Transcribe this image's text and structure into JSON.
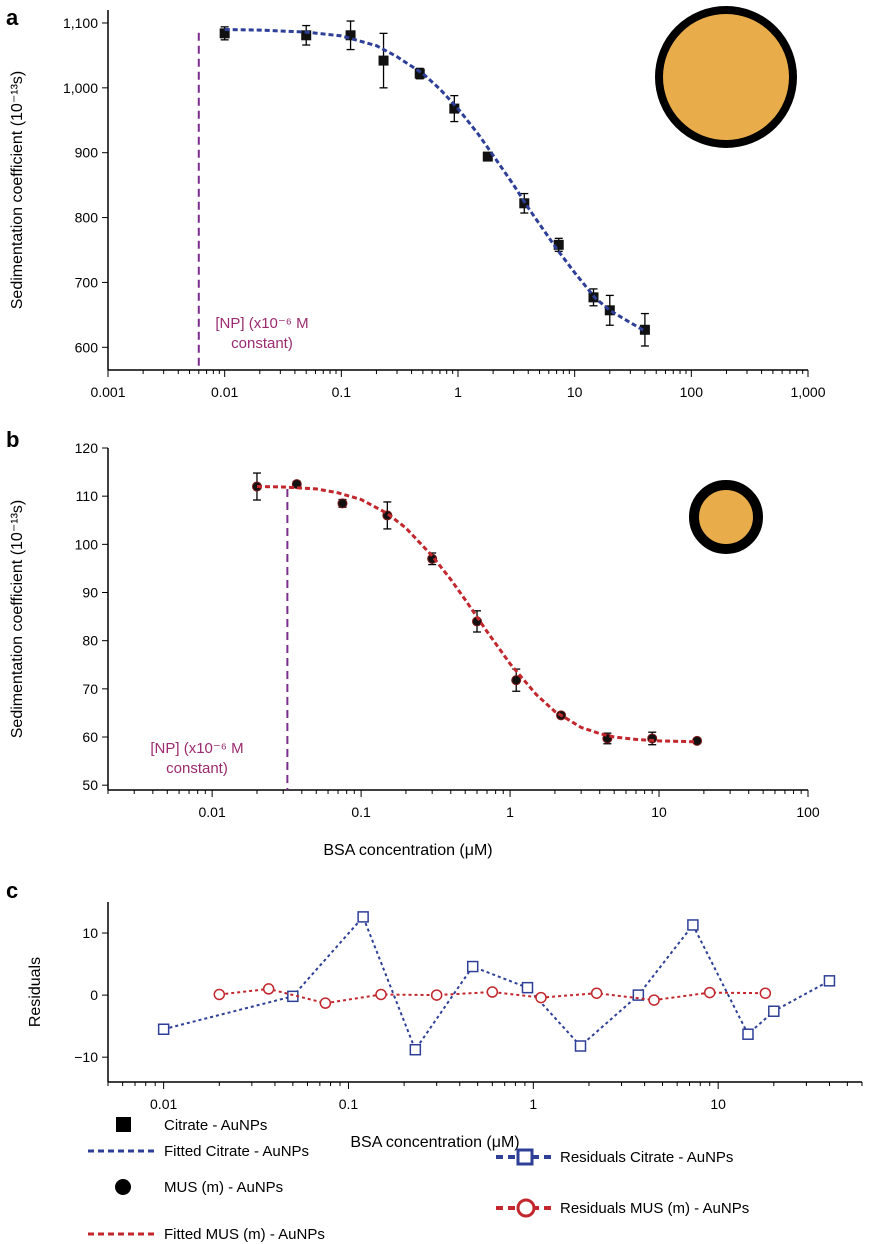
{
  "colors": {
    "citrate": "#2e3f97",
    "mus": "#c1272d",
    "np_line": "#7b2d8e",
    "np_text": "#9b2a6f",
    "particle_fill": "#e8ad4a",
    "particle_ring": "#000000"
  },
  "chart_data": [
    {
      "panel": "a",
      "type": "scatter",
      "xscale": "log",
      "xlim": [
        0.001,
        1000
      ],
      "ylim": [
        565,
        1120
      ],
      "ylabel": "Sedimentation coefficient (10⁻¹³s)",
      "xlabel": "",
      "x_ticks": [
        0.001,
        0.01,
        0.1,
        1,
        10,
        100,
        1000
      ],
      "x_tick_labels": [
        "0.001",
        "0.01",
        "0.1",
        "1",
        "10",
        "100",
        "1,000"
      ],
      "y_ticks": [
        600,
        700,
        800,
        900,
        1000,
        1100
      ],
      "y_tick_labels": [
        "600",
        "700",
        "800",
        "900",
        "1,000",
        "1,100"
      ],
      "np_concentration": 0.006,
      "np_label": [
        "[NP] (x10⁻⁶ M",
        "constant)"
      ],
      "series": [
        {
          "name": "Citrate - AuNPs",
          "marker": "square",
          "x": [
            0.01,
            0.05,
            0.12,
            0.23,
            0.47,
            0.93,
            1.8,
            3.7,
            7.3,
            14.5,
            20,
            40
          ],
          "y": [
            1084,
            1081,
            1081,
            1042,
            1022,
            968,
            894,
            822,
            758,
            677,
            657,
            627
          ],
          "err": [
            10,
            15,
            22,
            42,
            8,
            20,
            6,
            15,
            10,
            13,
            23,
            25
          ]
        },
        {
          "name": "Fitted Citrate - AuNPs",
          "line": "dashed",
          "x": [
            0.01,
            0.02,
            0.05,
            0.1,
            0.2,
            0.3,
            0.5,
            0.7,
            1,
            1.5,
            2,
            3,
            4,
            5,
            7,
            10,
            15,
            20,
            30,
            40
          ],
          "y": [
            1090,
            1089,
            1086,
            1080,
            1065,
            1048,
            1022,
            998,
            968,
            928,
            896,
            850,
            815,
            790,
            752,
            715,
            676,
            657,
            638,
            625
          ]
        }
      ]
    },
    {
      "panel": "b",
      "type": "scatter",
      "xscale": "log",
      "xlim": [
        0.002,
        100
      ],
      "ylim": [
        49,
        120
      ],
      "ylabel": "Sedimentation coefficient (10⁻¹³s)",
      "xlabel": "BSA concentration (μM)",
      "x_ticks": [
        0.01,
        0.1,
        1,
        10,
        100
      ],
      "x_tick_labels": [
        "0.01",
        "0.1",
        "1",
        "10",
        "100"
      ],
      "y_ticks": [
        50,
        60,
        70,
        80,
        90,
        100,
        110,
        120
      ],
      "y_tick_labels": [
        "50",
        "60",
        "70",
        "80",
        "90",
        "100",
        "110",
        "120"
      ],
      "np_concentration": 0.032,
      "np_label": [
        "[NP] (x10⁻⁶ M",
        "constant)"
      ],
      "series": [
        {
          "name": "MUS (m) - AuNPs",
          "marker": "circle",
          "x": [
            0.02,
            0.037,
            0.075,
            0.15,
            0.3,
            0.6,
            1.1,
            2.2,
            4.5,
            9,
            18
          ],
          "y": [
            112,
            112.5,
            108.5,
            106,
            97,
            84,
            71.8,
            64.5,
            59.7,
            59.7,
            59.2
          ],
          "err": [
            2.8,
            0.6,
            0.8,
            2.8,
            1.2,
            2.2,
            2.3,
            0.5,
            1.1,
            1.3,
            0.5
          ]
        },
        {
          "name": "Fitted MUS (m) - AuNPs",
          "line": "dashed",
          "x": [
            0.02,
            0.03,
            0.05,
            0.07,
            0.1,
            0.15,
            0.2,
            0.3,
            0.4,
            0.5,
            0.7,
            1,
            1.5,
            2,
            3,
            4,
            5,
            7,
            10,
            18
          ],
          "y": [
            112,
            111.9,
            111.5,
            110.7,
            109.3,
            106.4,
            103.4,
            97.6,
            92.7,
            88.5,
            81.9,
            75.2,
            68.8,
            65.3,
            62,
            60.7,
            60,
            59.5,
            59.2,
            59
          ]
        }
      ]
    },
    {
      "panel": "c",
      "type": "line",
      "xscale": "log",
      "xlim": [
        0.005,
        60
      ],
      "ylim": [
        -14,
        15
      ],
      "ylabel": "Residuals",
      "xlabel": "BSA concentration (μM)",
      "x_ticks": [
        0.01,
        0.1,
        1,
        10
      ],
      "x_tick_labels": [
        "0.01",
        "0.1",
        "1",
        "10"
      ],
      "y_ticks": [
        -10,
        0,
        10
      ],
      "y_tick_labels": [
        "−10",
        "0",
        "10"
      ],
      "series": [
        {
          "name": "Residuals Citrate - AuNPs",
          "marker": "open-square",
          "x": [
            0.01,
            0.05,
            0.12,
            0.23,
            0.47,
            0.93,
            1.8,
            3.7,
            7.3,
            14.5,
            20,
            40
          ],
          "y": [
            -5.5,
            -0.2,
            12.6,
            -8.8,
            4.6,
            1.2,
            -8.2,
            0,
            11.3,
            -6.3,
            -2.6,
            2.3
          ]
        },
        {
          "name": "Residuals MUS (m) - AuNPs",
          "marker": "open-circle",
          "x": [
            0.02,
            0.037,
            0.075,
            0.15,
            0.3,
            0.6,
            1.1,
            2.2,
            4.5,
            9,
            18
          ],
          "y": [
            0.1,
            1.0,
            -1.3,
            0.1,
            0,
            0.5,
            -0.4,
            0.3,
            -0.8,
            0.4,
            0.3
          ]
        }
      ]
    }
  ],
  "panels": {
    "a": {
      "letter": "a"
    },
    "b": {
      "letter": "b"
    },
    "c": {
      "letter": "c"
    }
  },
  "legend": {
    "citrate": "Citrate - AuNPs",
    "fitted_citrate": "Fitted Citrate - AuNPs",
    "mus": "MUS (m) - AuNPs",
    "fitted_mus": "Fitted MUS (m) - AuNPs",
    "res_citrate": "Residuals Citrate - AuNPs",
    "res_mus": "Residuals MUS (m) - AuNPs"
  }
}
